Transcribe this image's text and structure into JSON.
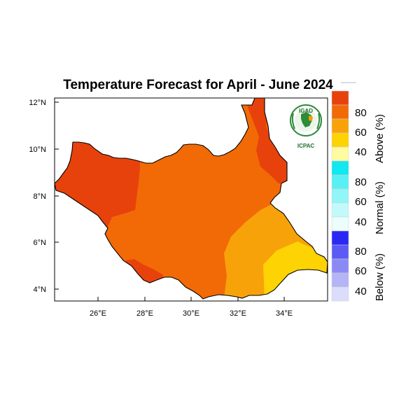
{
  "title": "Temperature Forecast for April - June 2024",
  "axes": {
    "x_ticks": [
      "26°E",
      "28°E",
      "30°E",
      "32°E",
      "34°E"
    ],
    "y_ticks": [
      "12°N",
      "10°N",
      "8°N",
      "6°N",
      "4°N"
    ]
  },
  "logo": {
    "top_text": "IGAD",
    "bottom_text": "ICPAC"
  },
  "legend": {
    "categories": [
      {
        "label": "Above (%)",
        "ticks": [
          "80",
          "60",
          "40"
        ]
      },
      {
        "label": "Normal (%)",
        "ticks": [
          "80",
          "60",
          "40"
        ]
      },
      {
        "label": "Below (%)",
        "ticks": [
          "80",
          "60",
          "40"
        ]
      }
    ]
  },
  "colors": {
    "above": [
      "#e8420c",
      "#f26a06",
      "#f8a20a",
      "#fdd303",
      "#fefba0"
    ],
    "normal": [
      "#11e8f0",
      "#59f0f4",
      "#92f5f7",
      "#c2fafb",
      "#ebfdfd"
    ],
    "below": [
      "#2a28f5",
      "#5b5af5",
      "#8b8af5",
      "#b5b4f7",
      "#dcdcfb"
    ]
  }
}
